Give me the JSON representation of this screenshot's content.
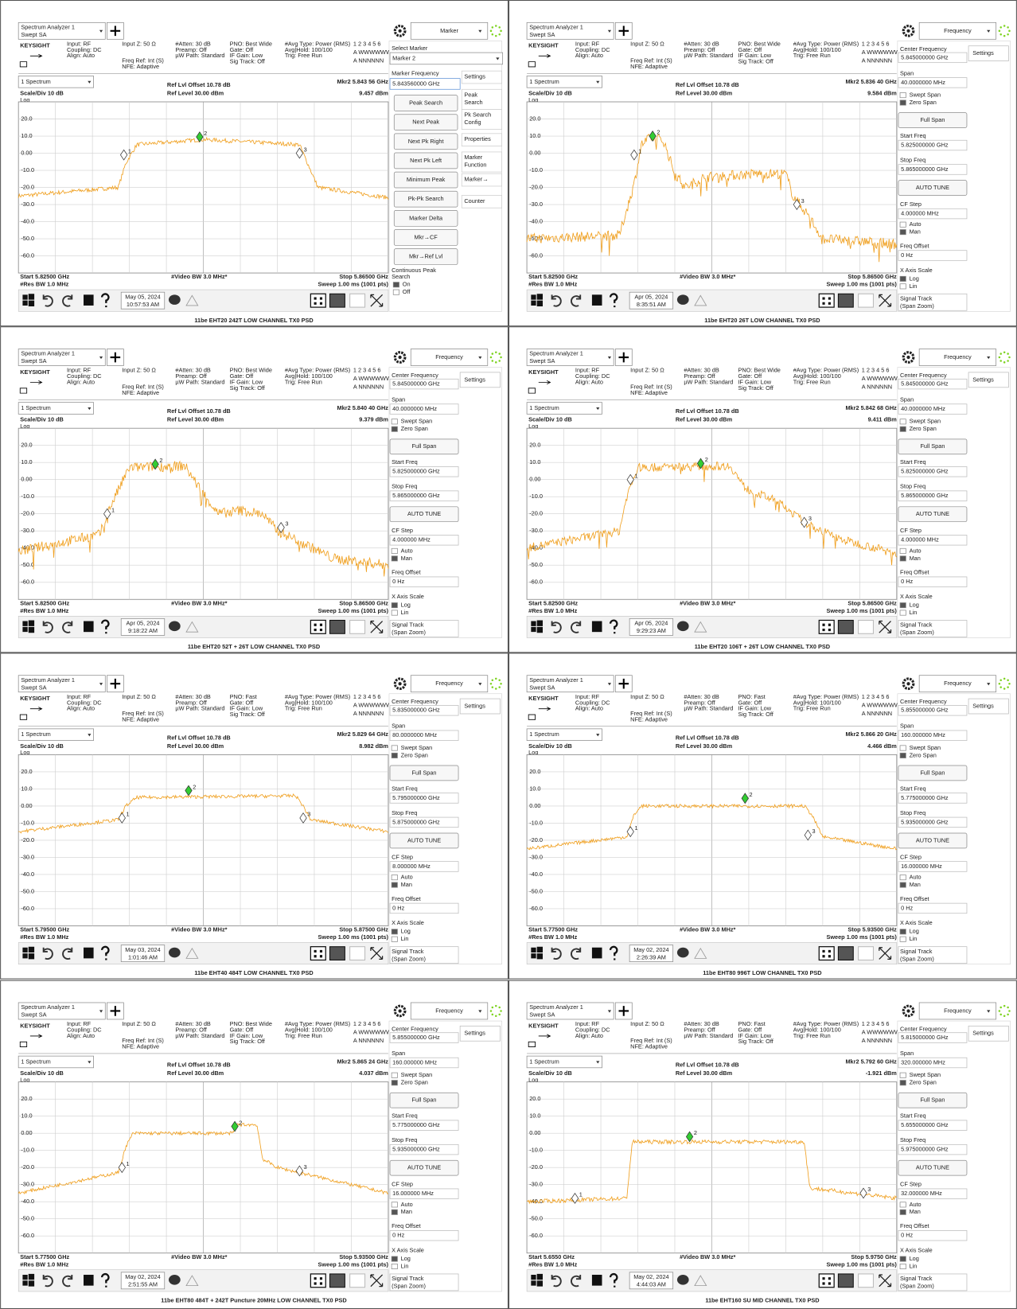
{
  "common": {
    "app": "Spectrum Analyzer 1",
    "mode": "Swept SA",
    "brand": "KEYSIGHT",
    "input": "Input: RF",
    "coupling": "Coupling: DC",
    "align": "Align: Auto",
    "input_z": "Input Z: 50 Ω",
    "freq_ref": "Freq Ref: Int (S)",
    "nfe": "NFE: Adaptive",
    "atten": "#Atten: 30 dB",
    "preamp": "Preamp: Off",
    "uw_path": "µW Path: Standard",
    "gate": "Gate: Off",
    "if_gain": "IF Gain: Low",
    "sig_track": "Sig Track: Off",
    "avg_type": "#Avg Type: Power (RMS)",
    "avg_hold": "Avg|Hold: 100/100",
    "trig": "Trig: Free Run",
    "trace_nums": "1 2 3 4 5 6",
    "trace_types": "A WWWWWW",
    "trace_dets": "A NNNNNN",
    "window": "1 Spectrum",
    "scale": "Scale/Div 10 dB",
    "log": "Log",
    "ref_offset": "Ref Lvl Offset 10.78 dB",
    "ref_level": "Ref Level 30.00 dBm",
    "ylim": [
      -70,
      30
    ],
    "yticks": [
      {
        "value": 20,
        "label": "20.0"
      },
      {
        "value": 10,
        "label": "10.0"
      },
      {
        "value": 0,
        "label": "0.00"
      },
      {
        "value": -10,
        "label": "-10.0"
      },
      {
        "value": -20,
        "label": "-20.0"
      },
      {
        "value": -30,
        "label": "-30.0"
      },
      {
        "value": -40,
        "label": "-40.0"
      },
      {
        "value": -50,
        "label": "-50.0"
      },
      {
        "value": -60,
        "label": "-60.0"
      }
    ],
    "rbw": "#Res BW 1.0 MHz",
    "vbw": "#Video BW 3.0 MHz*",
    "sweep": "Sweep 1.00 ms (1001 pts)",
    "marker_ids": [
      "1",
      "2",
      "3"
    ],
    "freq_menu": {
      "center": "Center Frequency",
      "span": "Span",
      "swept": "Swept Span",
      "zero": "Zero Span",
      "full": "Full Span",
      "start": "Start Freq",
      "stop": "Stop Freq",
      "auto_tune": "AUTO TUNE",
      "cf_step": "CF Step",
      "auto": "Auto",
      "man": "Man",
      "offset": "Freq Offset",
      "offset_val": "0 Hz",
      "xscale": "X Axis Scale",
      "log": "Log",
      "lin": "Lin",
      "signal": "Signal Track",
      "zoom": "(Span Zoom)",
      "settings": "Settings"
    },
    "marker_menu": {
      "select": "Select Marker",
      "marker_freq": "Marker Frequency",
      "buttons": [
        "Peak Search",
        "Next Peak",
        "Next Pk Right",
        "Next Pk Left",
        "Minimum Peak",
        "Pk-Pk Search",
        "Marker Delta",
        "Mkr→CF",
        "Mkr→Ref Lvl"
      ],
      "continuous": [
        "Continuous Peak",
        "Search"
      ],
      "on": "On",
      "off": "Off",
      "tabs": [
        [
          "Settings"
        ],
        [
          "Peak",
          "Search"
        ],
        [
          "Pk Search",
          "Config"
        ],
        [
          "Properties"
        ],
        [
          "Marker",
          "Function"
        ],
        [
          "Marker→"
        ],
        [
          "Counter"
        ]
      ]
    }
  },
  "panels": [
    {
      "caption": "11be EHT20 242T LOW CHANNEL TX0 PSD",
      "pno": "PNO: Best Wide",
      "mkr_freq": "Mkr2  5.843 56 GHz",
      "mkr_level": "9.457 dBm",
      "start": "Start 5.82500 GHz",
      "stop": "Stop 5.86500 GHz",
      "date": "May 05, 2024",
      "time": "10:57:53 AM",
      "menu": {
        "title": "Marker",
        "select": "Marker 2",
        "marker_freq": "5.843560000 GHz"
      }
    },
    {
      "caption": "11be EHT20 26T LOW CHANNEL TX0 PSD",
      "pno": "PNO: Best Wide",
      "mkr_freq": "Mkr2  5.836 40 GHz",
      "mkr_level": "9.584 dBm",
      "start": "Start 5.82500 GHz",
      "stop": "Stop 5.86500 GHz",
      "date": "Apr 05, 2024",
      "time": "8:35:51 AM",
      "menu": {
        "title": "Frequency",
        "center": "5.845000000 GHz",
        "span": "40.0000000 MHz",
        "start": "5.825000000 GHz",
        "stop": "5.865000000 GHz",
        "cf_step": "4.000000 MHz"
      }
    },
    {
      "caption": "11be EHT20 52T + 26T LOW CHANNEL TX0 PSD",
      "pno": "PNO: Best Wide",
      "mkr_freq": "Mkr2  5.840 40 GHz",
      "mkr_level": "9.379 dBm",
      "start": "Start 5.82500 GHz",
      "stop": "Stop 5.86500 GHz",
      "date": "Apr 05, 2024",
      "time": "9:18:22 AM",
      "menu": {
        "title": "Frequency",
        "center": "5.845000000 GHz",
        "span": "40.0000000 MHz",
        "start": "5.825000000 GHz",
        "stop": "5.865000000 GHz",
        "cf_step": "4.000000 MHz"
      }
    },
    {
      "caption": "11be EHT20 106T + 26T LOW CHANNEL TX0 PSD",
      "pno": "PNO: Best Wide",
      "mkr_freq": "Mkr2  5.842 68 GHz",
      "mkr_level": "9.411 dBm",
      "start": "Start 5.82500 GHz",
      "stop": "Stop 5.86500 GHz",
      "date": "Apr 05, 2024",
      "time": "9:29:23 AM",
      "menu": {
        "title": "Frequency",
        "center": "5.845000000 GHz",
        "span": "40.0000000 MHz",
        "start": "5.825000000 GHz",
        "stop": "5.865000000 GHz",
        "cf_step": "4.000000 MHz"
      }
    },
    {
      "caption": "11be EHT40 484T LOW CHANNEL TX0 PSD",
      "pno": "PNO: Fast",
      "mkr_freq": "Mkr2  5.829 64 GHz",
      "mkr_level": "8.982 dBm",
      "start": "Start 5.79500 GHz",
      "stop": "Stop 5.87500 GHz",
      "date": "May 03, 2024",
      "time": "1:01:46 AM",
      "menu": {
        "title": "Frequency",
        "center": "5.835000000 GHz",
        "span": "80.0000000 MHz",
        "start": "5.795000000 GHz",
        "stop": "5.875000000 GHz",
        "cf_step": "8.000000 MHz"
      }
    },
    {
      "caption": "11be EHT80 996T LOW CHANNEL TX0 PSD",
      "pno": "PNO: Fast",
      "mkr_freq": "Mkr2  5.866 20 GHz",
      "mkr_level": "4.466 dBm",
      "start": "Start 5.77500 GHz",
      "stop": "Stop 5.93500 GHz",
      "date": "May 02, 2024",
      "time": "2:26:39 AM",
      "menu": {
        "title": "Frequency",
        "center": "5.855000000 GHz",
        "span": "160.000000 MHz",
        "start": "5.775000000 GHz",
        "stop": "5.935000000 GHz",
        "cf_step": "16.000000 MHz"
      }
    },
    {
      "caption": "11be EHT80 484T + 242T Puncture 20MHz LOW CHANNEL TX0 PSD",
      "pno": "PNO: Best Wide",
      "mkr_freq": "Mkr2  5.865 24 GHz",
      "mkr_level": "4.037 dBm",
      "start": "Start 5.77500 GHz",
      "stop": "Stop 5.93500 GHz",
      "date": "May 02, 2024",
      "time": "2:51:55 AM",
      "menu": {
        "title": "Frequency",
        "center": "5.855000000 GHz",
        "span": "160.000000 MHz",
        "start": "5.775000000 GHz",
        "stop": "5.935000000 GHz",
        "cf_step": "16.000000 MHz"
      }
    },
    {
      "caption": "11be EHT160 SU MID CHANNEL TX0 PSD",
      "pno": "PNO: Fast",
      "mkr_freq": "Mkr2  5.792 60 GHz",
      "mkr_level": "-1.921 dBm",
      "start": "Start 5.6550 GHz",
      "stop": "Stop 5.9750 GHz",
      "date": "May 02, 2024",
      "time": "4:44:03 AM",
      "menu": {
        "title": "Frequency",
        "center": "5.815000000 GHz",
        "span": "320.000000 MHz",
        "start": "5.655000000 GHz",
        "stop": "5.975000000 GHz",
        "cf_step": "32.000000 MHz"
      }
    }
  ]
}
